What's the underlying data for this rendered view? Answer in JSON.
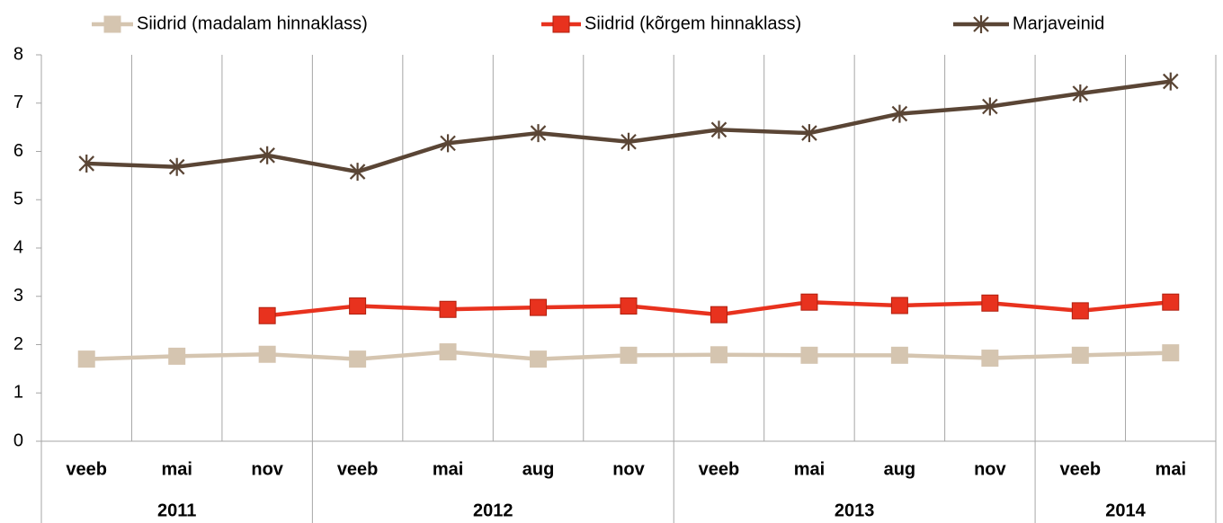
{
  "chart_data": {
    "type": "line",
    "categories": [
      "veeb",
      "mai",
      "nov",
      "veeb",
      "mai",
      "aug",
      "nov",
      "veeb",
      "mai",
      "aug",
      "nov",
      "veeb",
      "mai"
    ],
    "category_groups": [
      "2011",
      null,
      null,
      "2012",
      null,
      null,
      null,
      "2013",
      null,
      null,
      null,
      "2014",
      null
    ],
    "series": [
      {
        "name": "Siidrid (madalam hinnaklass)",
        "color": "#d5c5b0",
        "marker": "square",
        "values": [
          1.7,
          1.76,
          1.8,
          1.7,
          1.85,
          1.7,
          1.78,
          1.79,
          1.78,
          1.78,
          1.72,
          1.78,
          1.83
        ]
      },
      {
        "name": "Siidrid (kõrgem hinnaklass)",
        "color": "#e8321e",
        "marker": "square",
        "values": [
          null,
          null,
          2.6,
          2.8,
          2.73,
          2.77,
          2.8,
          2.62,
          2.88,
          2.81,
          2.86,
          2.7,
          2.88
        ]
      },
      {
        "name": "Marjaveinid",
        "color": "#5a4535",
        "marker": "star",
        "values": [
          5.75,
          5.68,
          5.92,
          5.58,
          6.17,
          6.38,
          6.2,
          6.45,
          6.38,
          6.78,
          6.93,
          7.2,
          7.45
        ]
      }
    ],
    "ylim": [
      0,
      8
    ],
    "yticks": [
      0,
      1,
      2,
      3,
      4,
      5,
      6,
      7,
      8
    ],
    "legend": "top",
    "grid": "x"
  }
}
